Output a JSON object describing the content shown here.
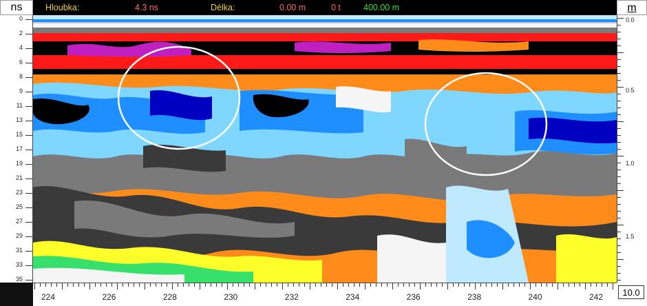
{
  "header": {
    "left_unit": "ns",
    "right_unit": "m",
    "depth_label": "Hloubka:",
    "depth_value": "4.3 ns",
    "length_label": "Délka:",
    "length_value": "0.00 m",
    "traces_value": "0 t",
    "total_length_value": "400.00 m"
  },
  "colors": {
    "depth_label": "#f2d23a",
    "depth_value": "#ff6a5a",
    "length_label": "#f2d23a",
    "length_value": "#ff6a5a",
    "traces_value": "#ff6a5a",
    "total_length_value": "#35e535"
  },
  "left_axis": {
    "ticks": [
      "0",
      "2",
      "4",
      "6",
      "8",
      "9",
      "11",
      "13",
      "15",
      "17",
      "19",
      "21",
      "23",
      "25",
      "27",
      "29",
      "31",
      "33",
      "35"
    ]
  },
  "right_axis": {
    "ticks": [
      "0.0",
      "0.5",
      "1.0",
      "1.5"
    ]
  },
  "bottom_axis": {
    "ticks": [
      "224",
      "226",
      "228",
      "230",
      "232",
      "234",
      "236",
      "238",
      "240",
      "242"
    ]
  },
  "scale_box": "10.0",
  "radargram": {
    "palette": [
      "#f5f5f5",
      "#37e06a",
      "#ffff2a",
      "#ff8c1a",
      "#7a7a7a",
      "#3a3a3a",
      "#000000",
      "#ff1a1a",
      "#c020c0",
      "#0000c0",
      "#1f8fff",
      "#7fd6ff",
      "#bfe9ff"
    ],
    "highlights": [
      "ellipse-left",
      "ellipse-right"
    ]
  }
}
